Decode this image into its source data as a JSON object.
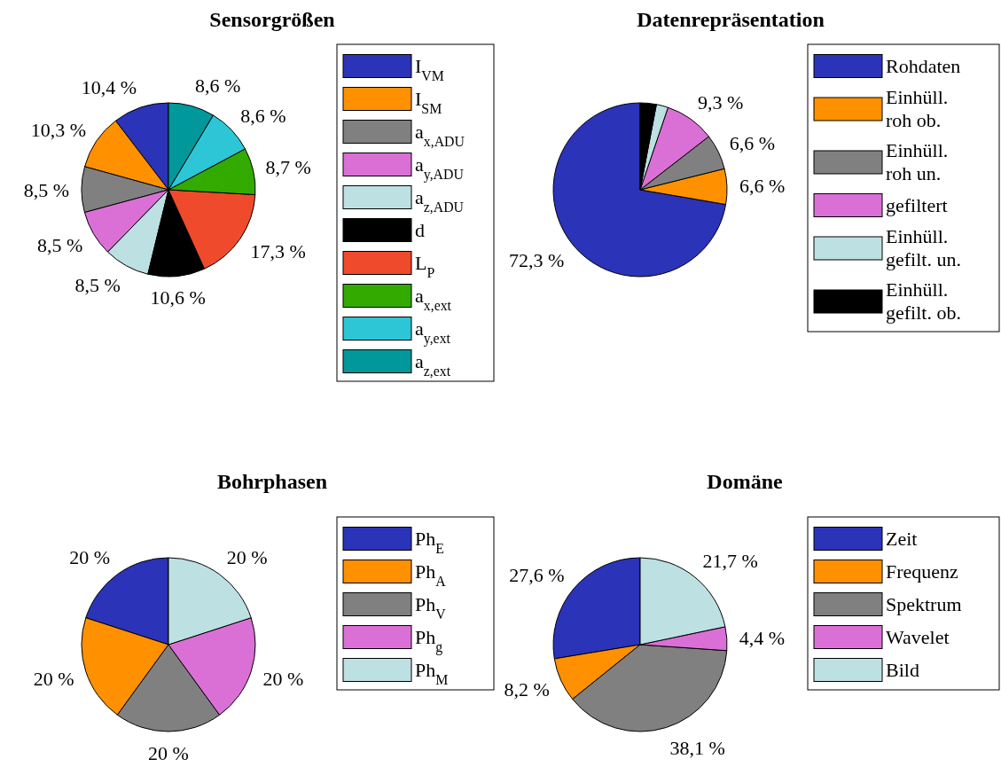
{
  "chart_data": [
    {
      "type": "pie",
      "title": "Sensorgrößen",
      "legend": "right",
      "categories": [
        "I$_{VM}$",
        "I$_{SM}$",
        "a$_{x,ADU}$",
        "a$_{y,ADU}$",
        "a$_{z,ADU}$",
        "d",
        "L$_{P}$",
        "a$_{x,ext}$",
        "a$_{y,ext}$",
        "a$_{z,ext}$"
      ],
      "values": [
        10.4,
        10.3,
        8.5,
        8.5,
        8.5,
        10.6,
        17.3,
        8.7,
        8.6,
        8.6
      ],
      "value_labels": [
        "10,4 %",
        "10,3 %",
        "8,5 %",
        "8,5 %",
        "8,5 %",
        "10,6 %",
        "17,3 %",
        "8,7 %",
        "8,6 %",
        "8,6 %"
      ],
      "colors": [
        "#2b33b8",
        "#ff9100",
        "#808080",
        "#da70d6",
        "#bde0e3",
        "#000000",
        "#f04a2c",
        "#33aa00",
        "#2dc6d6",
        "#00989a"
      ]
    },
    {
      "type": "pie",
      "title": "Datenrepräsentation",
      "legend": "right",
      "categories": [
        "Rohdaten",
        "Einhüll.\nroh ob.",
        "Einhüll.\nroh un.",
        "gefiltert",
        "Einhüll.\ngefilt. un.",
        "Einhüll.\ngefilt. ob."
      ],
      "values": [
        72.3,
        6.6,
        6.6,
        9.3,
        2.2,
        3.0
      ],
      "value_labels": [
        "72,3 %",
        "6,6 %",
        "6,6 %",
        "9,3 %",
        null,
        null
      ],
      "colors": [
        "#2b33b8",
        "#ff9100",
        "#808080",
        "#da70d6",
        "#bde0e3",
        "#000000"
      ]
    },
    {
      "type": "pie",
      "title": "Bohrphasen",
      "legend": "right",
      "categories": [
        "Ph$_{E}$",
        "Ph$_{A}$",
        "Ph$_{V}$",
        "Ph$_{g}$",
        "Ph$_{M}$"
      ],
      "values": [
        20,
        20,
        20,
        20,
        20
      ],
      "value_labels": [
        "20 %",
        "20 %",
        "20 %",
        "20 %",
        "20 %"
      ],
      "colors": [
        "#2b33b8",
        "#ff9100",
        "#808080",
        "#da70d6",
        "#bde0e3"
      ]
    },
    {
      "type": "pie",
      "title": "Domäne",
      "legend": "right",
      "categories": [
        "Zeit",
        "Frequenz",
        "Spektrum",
        "Wavelet",
        "Bild"
      ],
      "values": [
        27.6,
        8.2,
        38.1,
        4.4,
        21.7
      ],
      "value_labels": [
        "27,6 %",
        "8,2 %",
        "38,1 %",
        "4,4 %",
        "21,7 %"
      ],
      "colors": [
        "#2b33b8",
        "#ff9100",
        "#808080",
        "#da70d6",
        "#bde0e3"
      ]
    }
  ]
}
